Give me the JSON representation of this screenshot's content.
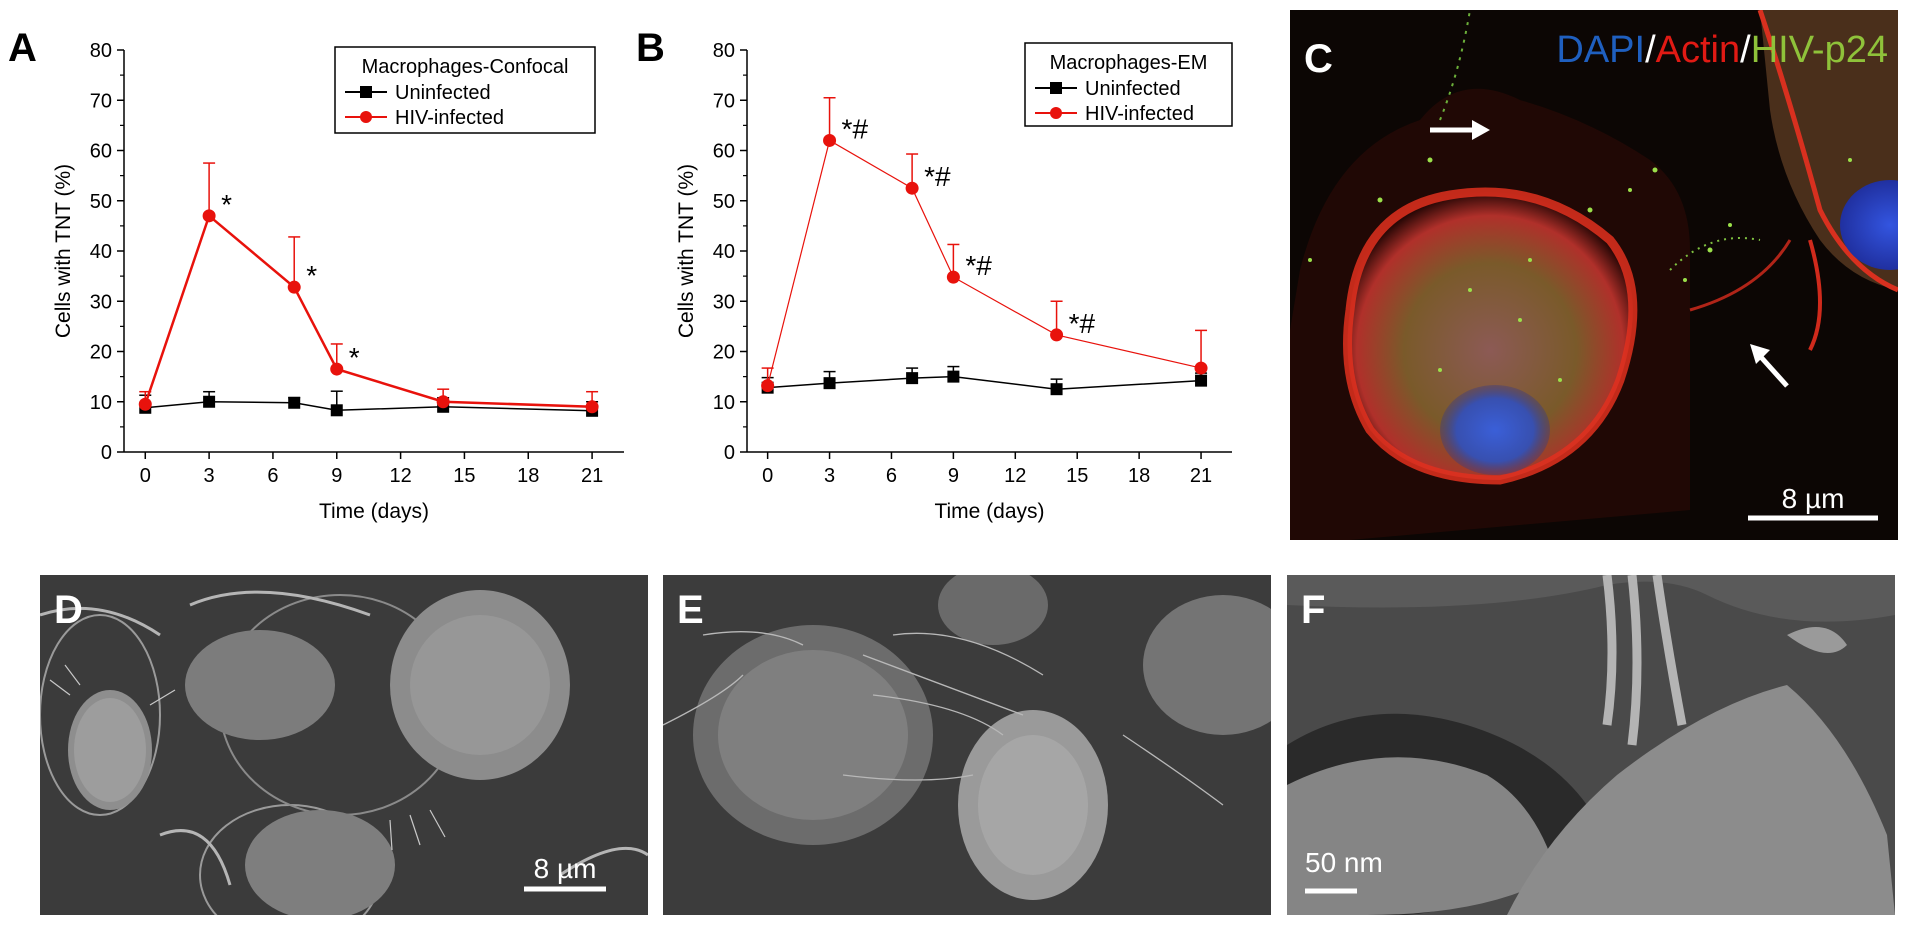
{
  "panels": {
    "a": {
      "letter": "A"
    },
    "b": {
      "letter": "B"
    },
    "c": {
      "letter": "C",
      "stain_dapi": "DAPI",
      "stain_sep1": "/",
      "stain_actin": "Actin",
      "stain_sep2": "/",
      "stain_p24": "HIV-p24",
      "scale": "8 µm"
    },
    "d": {
      "letter": "D",
      "scale": "8 µm"
    },
    "e": {
      "letter": "E"
    },
    "f": {
      "letter": "F",
      "scale": "50 nm"
    }
  },
  "colors": {
    "uninfected": "#000000",
    "infected": "#e8120c",
    "dapi": "#1f5fbf",
    "actin": "#e11a14",
    "p24": "#8fc23a"
  },
  "chart_data": [
    {
      "type": "line",
      "panel": "A",
      "legend_title": "Macrophages-Confocal",
      "xlabel": "Time (days)",
      "ylabel": "Cells with TNT (%)",
      "xlim": [
        -1,
        22.5
      ],
      "ylim": [
        0,
        80
      ],
      "xticks": [
        0,
        3,
        6,
        9,
        12,
        15,
        18,
        21
      ],
      "yticks": [
        0,
        10,
        20,
        30,
        40,
        50,
        60,
        70,
        80
      ],
      "series": [
        {
          "name": "Uninfected",
          "color": "#000000",
          "marker": "square",
          "x": [
            0,
            3,
            7,
            9,
            14,
            21
          ],
          "y": [
            8.8,
            10.0,
            9.8,
            8.3,
            9.0,
            8.2
          ],
          "err": [
            2.5,
            2.0,
            1.0,
            3.8,
            1.8,
            1.8
          ]
        },
        {
          "name": "HIV-infected",
          "color": "#e8120c",
          "marker": "circle",
          "x": [
            0,
            3,
            7,
            9,
            14,
            21
          ],
          "y": [
            9.5,
            47.0,
            32.8,
            16.5,
            10.0,
            9.0
          ],
          "err": [
            2.5,
            10.5,
            10.0,
            5.0,
            2.5,
            3.0
          ]
        }
      ],
      "annotations": [
        {
          "x": 3,
          "y": 47.0,
          "text": "*"
        },
        {
          "x": 7,
          "y": 32.8,
          "text": "*"
        },
        {
          "x": 9,
          "y": 16.5,
          "text": "*"
        }
      ]
    },
    {
      "type": "line",
      "panel": "B",
      "legend_title": "Macrophages-EM",
      "xlabel": "Time (days)",
      "ylabel": "Cells with TNT (%)",
      "xlim": [
        -1,
        22.5
      ],
      "ylim": [
        0,
        80
      ],
      "xticks": [
        0,
        3,
        6,
        9,
        12,
        15,
        18,
        21
      ],
      "yticks": [
        0,
        10,
        20,
        30,
        40,
        50,
        60,
        70,
        80
      ],
      "series": [
        {
          "name": "Uninfected",
          "color": "#000000",
          "marker": "square",
          "x": [
            0,
            3,
            7,
            9,
            14,
            21
          ],
          "y": [
            12.8,
            13.7,
            14.7,
            15.0,
            12.5,
            14.2
          ],
          "err": [
            2.0,
            2.3,
            2.0,
            2.0,
            2.0,
            1.5
          ]
        },
        {
          "name": "HIV-infected",
          "color": "#e8120c",
          "marker": "circle",
          "x": [
            0,
            3,
            7,
            9,
            14,
            21
          ],
          "y": [
            13.2,
            62.0,
            52.5,
            34.8,
            23.3,
            16.7
          ],
          "err": [
            3.5,
            8.5,
            6.8,
            6.5,
            6.7,
            7.5
          ]
        }
      ],
      "annotations": [
        {
          "x": 3,
          "y": 62.0,
          "text": "*#"
        },
        {
          "x": 7,
          "y": 52.5,
          "text": "*#"
        },
        {
          "x": 9,
          "y": 34.8,
          "text": "*#"
        },
        {
          "x": 14,
          "y": 23.3,
          "text": "*#"
        }
      ]
    }
  ]
}
